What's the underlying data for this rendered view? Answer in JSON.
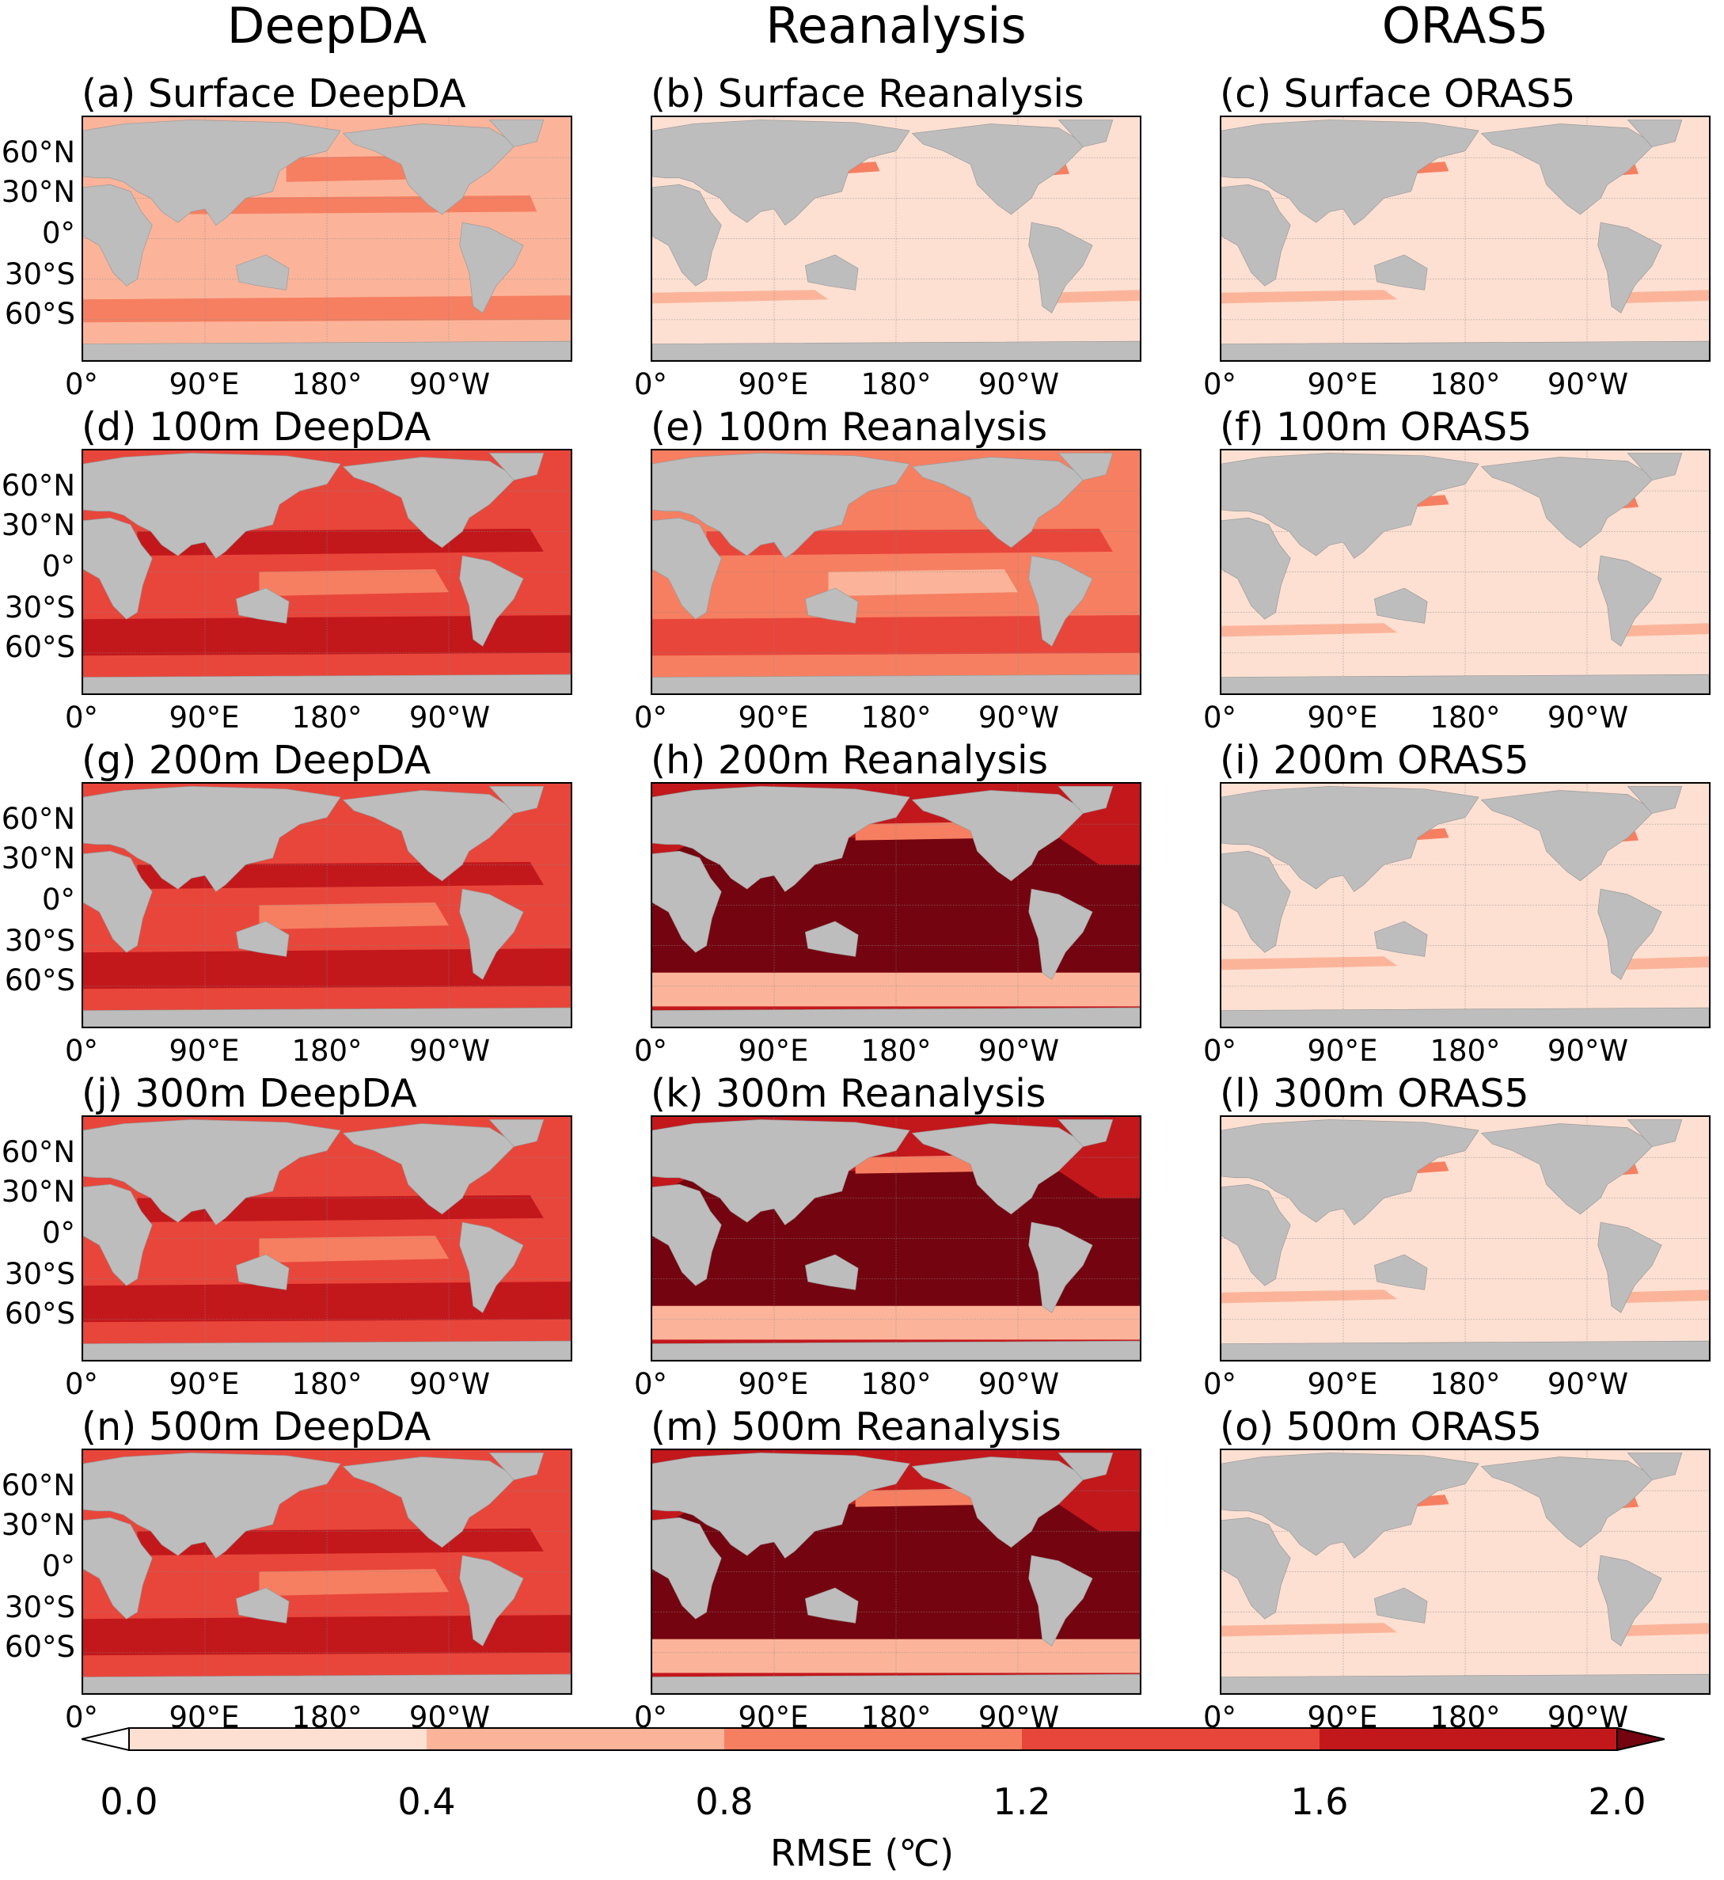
{
  "columns": [
    "DeepDA",
    "Reanalysis",
    "ORAS5"
  ],
  "panels": [
    {
      "title": "(a) Surface DeepDA",
      "level": 1
    },
    {
      "title": "(b) Surface Reanalysis",
      "level": 0
    },
    {
      "title": "(c) Surface ORAS5",
      "level": 0
    },
    {
      "title": "(d) 100m DeepDA",
      "level": 3
    },
    {
      "title": "(e) 100m Reanalysis",
      "level": 2
    },
    {
      "title": "(f) 100m ORAS5",
      "level": 0
    },
    {
      "title": "(g) 200m DeepDA",
      "level": 3
    },
    {
      "title": "(h) 200m Reanalysis",
      "level": 5
    },
    {
      "title": "(i) 200m ORAS5",
      "level": 0
    },
    {
      "title": "(j) 300m DeepDA",
      "level": 3
    },
    {
      "title": "(k) 300m Reanalysis",
      "level": 5
    },
    {
      "title": "(l) 300m ORAS5",
      "level": 0
    },
    {
      "title": "(n) 500m DeepDA",
      "level": 3
    },
    {
      "title": "(m) 500m Reanalysis",
      "level": 5
    },
    {
      "title": "(o) 500m ORAS5",
      "level": 0
    }
  ],
  "lat_labels": [
    "60°N",
    "30°N",
    "0°",
    "30°S",
    "60°S"
  ],
  "lon_labels": [
    "0°",
    "90°E",
    "180°",
    "90°W"
  ],
  "colorbar": {
    "ticks": [
      "0.0",
      "0.4",
      "0.8",
      "1.2",
      "1.6",
      "2.0"
    ],
    "label": "RMSE (℃)",
    "boundaries": [
      0.0,
      0.4,
      0.8,
      1.2,
      1.6,
      2.0
    ],
    "colors": [
      "#fde0d2",
      "#fbb49a",
      "#f67f61",
      "#e8463b",
      "#c2181c",
      "#74040f"
    ]
  },
  "land_color": "#bdbdbd"
}
